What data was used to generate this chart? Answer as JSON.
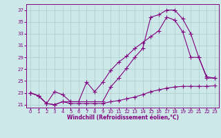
{
  "bg_color": "#cce8e8",
  "grid_color": "#aacccc",
  "line_color": "#800080",
  "marker": "+",
  "markersize": 4,
  "xlabel": "Windchill (Refroidissement éolien,°C)",
  "ylabel_ticks": [
    21,
    23,
    25,
    27,
    29,
    31,
    33,
    35,
    37
  ],
  "xlim": [
    -0.5,
    23.5
  ],
  "ylim": [
    20.5,
    38.0
  ],
  "curve1_x": [
    0,
    1,
    2,
    3,
    4,
    5,
    6,
    7,
    8,
    9,
    10,
    11,
    12,
    13,
    14,
    15,
    16,
    17,
    18,
    19,
    20,
    21,
    22,
    23
  ],
  "curve1_y": [
    23.0,
    22.5,
    21.2,
    21.0,
    21.5,
    21.2,
    21.2,
    21.2,
    21.2,
    21.2,
    21.5,
    21.7,
    22.0,
    22.3,
    22.7,
    23.2,
    23.5,
    23.8,
    24.0,
    24.1,
    24.1,
    24.1,
    24.1,
    24.2
  ],
  "curve2_x": [
    0,
    1,
    2,
    3,
    4,
    5,
    6,
    7,
    8,
    9,
    10,
    11,
    12,
    13,
    14,
    15,
    16,
    17,
    18,
    19,
    20,
    21,
    22,
    23
  ],
  "curve2_y": [
    23.0,
    22.5,
    21.2,
    23.2,
    22.7,
    21.5,
    21.5,
    24.8,
    23.2,
    24.8,
    26.8,
    28.2,
    29.2,
    30.5,
    31.5,
    32.5,
    33.5,
    35.8,
    35.3,
    33.3,
    29.0,
    29.0,
    25.7,
    25.5
  ],
  "curve3_x": [
    0,
    1,
    2,
    3,
    4,
    5,
    6,
    7,
    8,
    9,
    10,
    11,
    12,
    13,
    14,
    15,
    16,
    17,
    18,
    19,
    20,
    21,
    22,
    23
  ],
  "curve3_y": [
    23.0,
    22.5,
    21.2,
    21.0,
    21.5,
    21.5,
    21.5,
    21.5,
    21.5,
    21.5,
    24.0,
    25.5,
    27.2,
    29.0,
    30.5,
    35.8,
    36.2,
    37.0,
    37.0,
    35.5,
    33.0,
    29.0,
    25.5,
    25.5
  ]
}
